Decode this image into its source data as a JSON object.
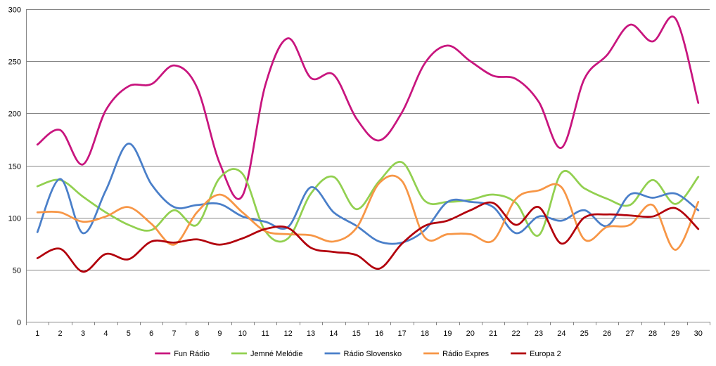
{
  "chart_data": {
    "type": "line",
    "title": "",
    "xlabel": "",
    "ylabel": "",
    "ylim": [
      0,
      300
    ],
    "yticks": [
      0,
      50,
      100,
      150,
      200,
      250,
      300
    ],
    "grid": "horizontal",
    "smooth": true,
    "legend_position": "bottom",
    "x": [
      1,
      2,
      3,
      4,
      5,
      6,
      7,
      8,
      9,
      10,
      11,
      12,
      13,
      14,
      15,
      16,
      17,
      18,
      19,
      20,
      21,
      22,
      23,
      24,
      25,
      26,
      27,
      28,
      29,
      30
    ],
    "series": [
      {
        "name": "Fun Rádio",
        "color": "#c8157e",
        "values": [
          170,
          184,
          151,
          203,
          226,
          228,
          246,
          225,
          152,
          121,
          227,
          272,
          234,
          237,
          195,
          174,
          201,
          248,
          265,
          250,
          236,
          233,
          211,
          167,
          233,
          256,
          285,
          269,
          291,
          210
        ]
      },
      {
        "name": "Jemné Melódie",
        "color": "#92d050",
        "values": [
          130,
          136,
          120,
          105,
          93,
          88,
          107,
          93,
          138,
          142,
          87,
          80,
          123,
          139,
          108,
          135,
          153,
          116,
          115,
          117,
          122,
          114,
          83,
          143,
          128,
          118,
          112,
          136,
          113,
          139
        ]
      },
      {
        "name": "Rádio Slovensko",
        "color": "#4a7fc9",
        "values": [
          86,
          137,
          85,
          126,
          171,
          132,
          110,
          112,
          113,
          101,
          96,
          91,
          129,
          105,
          92,
          77,
          76,
          88,
          115,
          115,
          110,
          85,
          101,
          97,
          107,
          92,
          122,
          119,
          123,
          107
        ]
      },
      {
        "name": "Rádio Expres",
        "color": "#f79646",
        "values": [
          105,
          105,
          96,
          101,
          110,
          94,
          74,
          105,
          122,
          105,
          87,
          84,
          83,
          77,
          90,
          133,
          135,
          81,
          84,
          84,
          78,
          118,
          126,
          129,
          79,
          91,
          93,
          112,
          69,
          115
        ]
      },
      {
        "name": "Europa 2",
        "color": "#b2000c",
        "values": [
          61,
          70,
          48,
          65,
          60,
          77,
          76,
          79,
          74,
          80,
          89,
          90,
          71,
          67,
          64,
          51,
          75,
          92,
          97,
          107,
          114,
          93,
          110,
          75,
          100,
          103,
          102,
          101,
          109,
          89
        ]
      }
    ]
  }
}
